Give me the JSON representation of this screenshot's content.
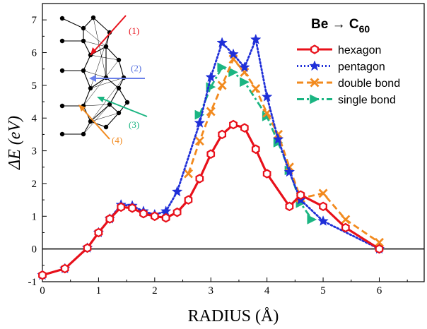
{
  "chart_data": {
    "type": "line",
    "title": "",
    "xlabel": "RADIUS (Å)",
    "ylabel": "ΔE (eV)",
    "xlim": [
      0,
      6.8
    ],
    "ylim": [
      -1,
      7.5
    ],
    "xticks": [
      "0",
      "1",
      "2",
      "3",
      "4",
      "5",
      "6"
    ],
    "yticks": [
      "-1",
      "0",
      "1",
      "2",
      "3",
      "4",
      "5",
      "6",
      "7"
    ],
    "legend": {
      "title_main": "Be → C",
      "title_sub": "60",
      "position": "top-right"
    },
    "reference_line_y": 0,
    "series": [
      {
        "name": "hexagon",
        "color": "#e8101a",
        "marker": "hexagon-open",
        "style": "solid",
        "x": [
          0.0,
          0.4,
          0.8,
          1.0,
          1.2,
          1.4,
          1.6,
          1.8,
          2.0,
          2.2,
          2.4,
          2.6,
          2.8,
          3.0,
          3.2,
          3.4,
          3.6,
          3.8,
          4.0,
          4.4,
          4.6,
          5.0,
          5.4,
          6.0
        ],
        "y": [
          -0.8,
          -0.6,
          0.03,
          0.5,
          0.92,
          1.28,
          1.25,
          1.08,
          1.0,
          0.95,
          1.12,
          1.5,
          2.15,
          2.9,
          3.5,
          3.8,
          3.7,
          3.05,
          2.3,
          1.3,
          1.65,
          1.3,
          0.65,
          0.0
        ]
      },
      {
        "name": "pentagon",
        "color": "#1f2fd8",
        "marker": "star",
        "style": "dotted",
        "x": [
          0.0,
          0.4,
          0.8,
          1.0,
          1.2,
          1.4,
          1.6,
          1.8,
          2.0,
          2.2,
          2.4,
          2.8,
          3.0,
          3.2,
          3.4,
          3.6,
          3.8,
          4.0,
          4.2,
          4.4,
          4.6,
          5.0,
          6.0
        ],
        "y": [
          -0.8,
          -0.6,
          0.03,
          0.5,
          0.92,
          1.35,
          1.32,
          1.15,
          1.05,
          1.15,
          1.75,
          3.85,
          5.25,
          6.3,
          5.95,
          5.55,
          6.4,
          4.65,
          3.35,
          2.35,
          1.5,
          0.85,
          0.0
        ]
      },
      {
        "name": "double bond",
        "color": "#f28a1e",
        "marker": "x",
        "style": "dashed",
        "x": [
          2.6,
          2.8,
          3.0,
          3.2,
          3.4,
          3.6,
          3.8,
          4.0,
          4.2,
          4.4,
          4.6,
          5.0,
          5.4,
          6.0
        ],
        "y": [
          2.3,
          3.3,
          4.2,
          5.0,
          5.8,
          5.4,
          4.9,
          4.15,
          3.5,
          2.5,
          1.55,
          1.7,
          0.9,
          0.2
        ]
      },
      {
        "name": "single bond",
        "color": "#1bb582",
        "marker": "triangle-right",
        "style": "dashdot",
        "x": [
          2.8,
          3.0,
          3.2,
          3.4,
          3.6,
          4.0,
          4.2,
          4.4,
          4.6,
          4.8
        ],
        "y": [
          4.1,
          4.95,
          5.55,
          5.4,
          5.1,
          4.05,
          3.25,
          2.4,
          1.4,
          0.9
        ]
      }
    ],
    "inset": {
      "labels": [
        {
          "text": "(1)",
          "color": "#e8101a"
        },
        {
          "text": "(2)",
          "color": "#5570e0"
        },
        {
          "text": "(3)",
          "color": "#1bb582"
        },
        {
          "text": "(4)",
          "color": "#f28a1e"
        }
      ]
    }
  }
}
